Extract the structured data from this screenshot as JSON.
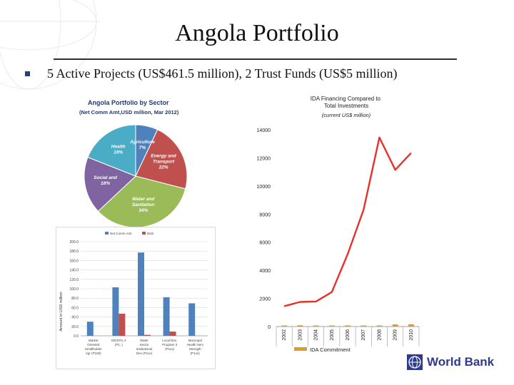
{
  "slide": {
    "title": "Angola Portfolio",
    "bullet": "5 Active Projects (US$461.5 million), 2 Trust Funds (US$5 million)",
    "logo_text": "World Bank"
  },
  "colors": {
    "blue": "#4f81bd",
    "red": "#c0504d",
    "green": "#9bbb59",
    "purple": "#8064a2",
    "aqua": "#4bacc6",
    "line_red": "#e8302a",
    "orange": "#e39a2c"
  },
  "chart_data": [
    {
      "type": "pie",
      "title": "Angola Portfolio by Sector",
      "subtitle": "(Net Comm Amt,USD million, Mar 2012)",
      "slices": [
        {
          "name": "Agriculture",
          "pct_label": "7%",
          "value": 7,
          "color": "#4f81bd"
        },
        {
          "name": "Energy and Transport",
          "pct_label": "22%",
          "value": 22,
          "color": "#c0504d"
        },
        {
          "name": "Water and Sanitation",
          "pct_label": "34%",
          "value": 34,
          "color": "#9bbb59"
        },
        {
          "name": "Social Service",
          "pct_label": "18%",
          "value": 18,
          "color": "#8064a2"
        },
        {
          "name": "Health",
          "pct_label": "19%",
          "value": 19,
          "color": "#4bacc6"
        }
      ]
    },
    {
      "type": "bar",
      "ylabel": "Amount in USD million",
      "ylim": [
        0,
        200
      ],
      "yticks": [
        "0.0",
        "20.0",
        "40.0",
        "60.0",
        "80.0",
        "100.0",
        "120.0",
        "140.0",
        "160.0",
        "180.0",
        "200.0"
      ],
      "categories": [
        [
          "Market",
          "Oriented",
          "Smallholder",
          "Agr (P106)"
        ],
        [
          "MOSTIL 2",
          "(P1..)"
        ],
        [
          "Water",
          "Sector",
          "Institutional",
          "Dev (P1xx)"
        ],
        [
          "Local Dev.",
          "Program 3",
          "(P1xx)"
        ],
        [
          "Municipal",
          "Health Serv",
          "Strength",
          "(P1xx)"
        ]
      ],
      "series": [
        {
          "name": "Net Comm Amt",
          "color": "#4f81bd",
          "values": [
            30,
            103,
            177,
            82,
            69
          ]
        },
        {
          "name": "Disb",
          "color": "#c0504d",
          "values": [
            0,
            47,
            2,
            9,
            0
          ]
        }
      ]
    },
    {
      "type": "line",
      "title": "IDA Financing Compared to Total Investments",
      "subtitle": "(current US$ million)",
      "x": [
        "2002",
        "2003",
        "2004",
        "2005",
        "2006",
        "2007",
        "2008",
        "2009",
        "2010"
      ],
      "ylim": [
        0,
        14000
      ],
      "yticks": [
        "0",
        "2000",
        "4000",
        "6000",
        "8000",
        "10000",
        "12000",
        "14000"
      ],
      "series": [
        {
          "name": "",
          "color": "#e8302a",
          "values": [
            1450,
            1750,
            1780,
            2450,
            5150,
            8300,
            13450,
            11150,
            12350
          ]
        },
        {
          "name": "IDA Commitment",
          "color": "#e39a2c",
          "values": [
            20,
            90,
            30,
            60,
            80,
            40,
            10,
            150,
            160
          ]
        }
      ],
      "legend": "bottom"
    }
  ]
}
